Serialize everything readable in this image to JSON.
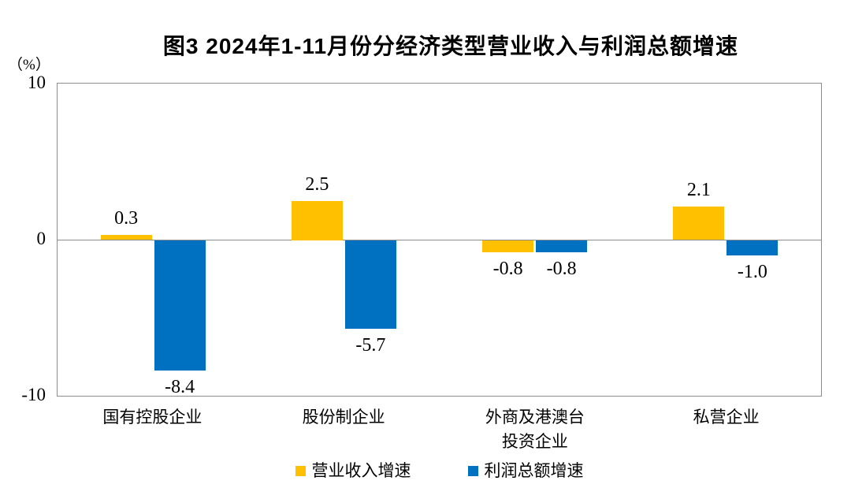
{
  "figure": {
    "title": "图3 2024年1-11月份分经济类型营业收入与利润总额增速",
    "y_axis_unit": "（%）"
  },
  "colors": {
    "revenue_series": "#FFC000",
    "profit_series": "#0070C0",
    "axis_line": "#8C8C8C",
    "text": "#000000",
    "background": "#FFFFFF"
  },
  "chart_data": {
    "type": "bar",
    "title": "图3 2024年1-11月份分经济类型营业收入与利润总额增速",
    "categories": [
      "国有控股企业",
      "股份制企业",
      "外商及港澳台\n投资企业",
      "私营企业"
    ],
    "series": [
      {
        "name": "营业收入增速",
        "color": "#FFC000",
        "values": [
          0.3,
          2.5,
          -0.8,
          2.1
        ]
      },
      {
        "name": "利润总额增速",
        "color": "#0070C0",
        "values": [
          -8.4,
          -5.7,
          -0.8,
          -1.0
        ]
      }
    ],
    "xlabel": "",
    "ylabel": "（%）",
    "ylim": [
      -10,
      10
    ],
    "yticks": [
      10,
      0,
      -10
    ],
    "grid": false,
    "legend_position": "bottom",
    "bar_value_labels": true,
    "value_label_decimals": 1
  }
}
